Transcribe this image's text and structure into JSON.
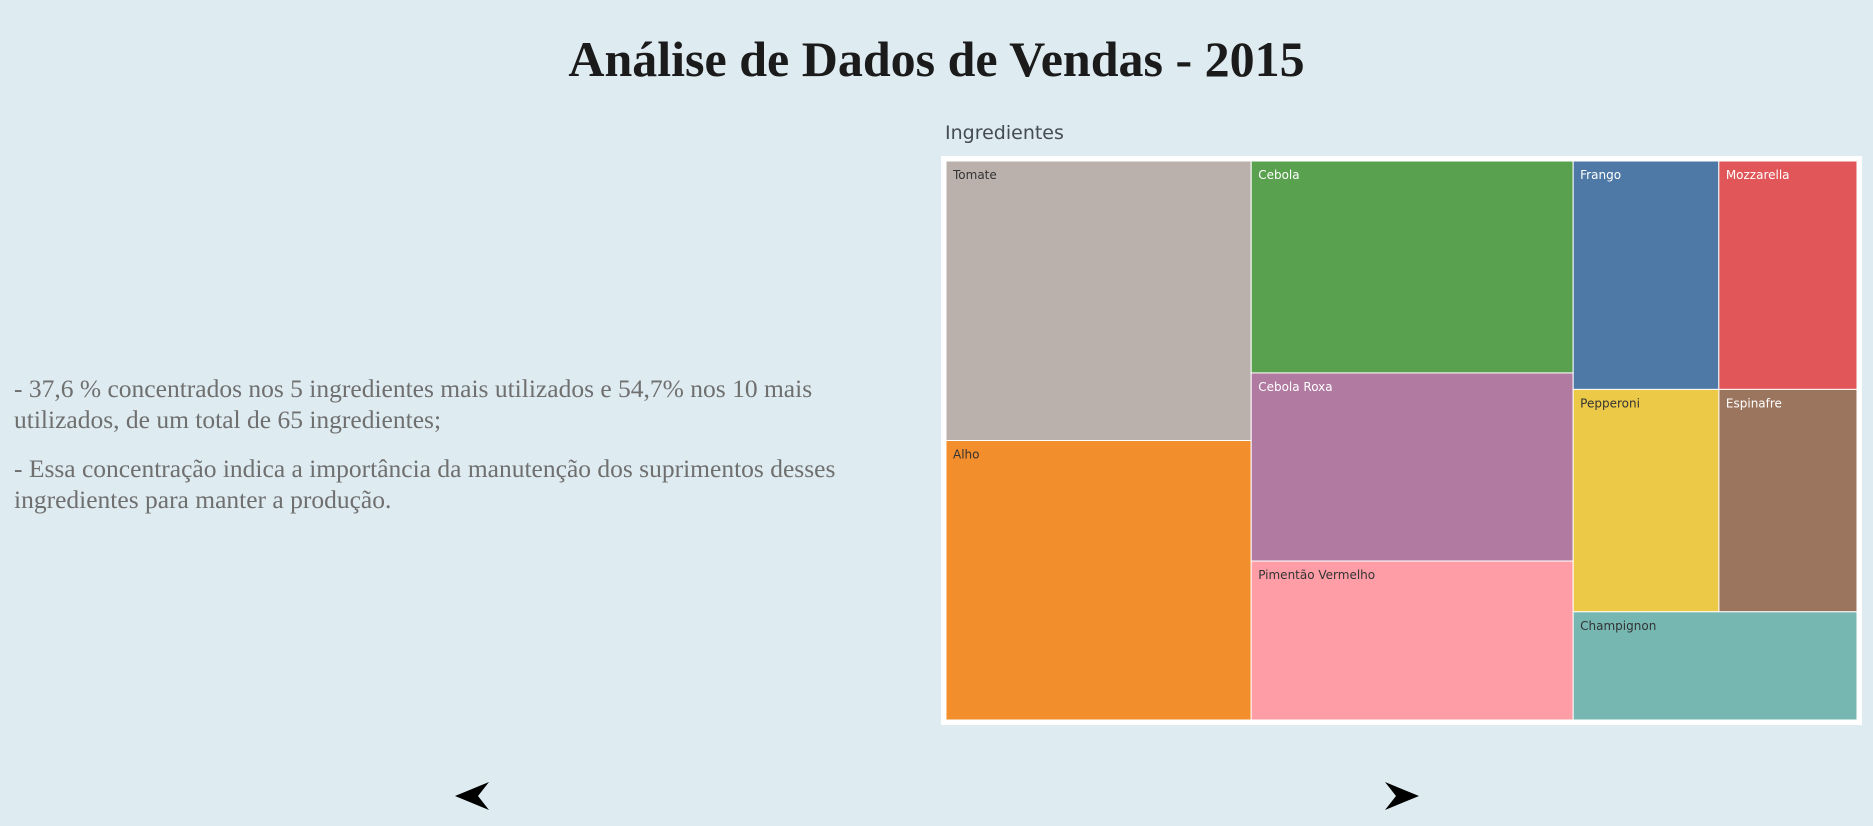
{
  "header": {
    "title": "Análise de Dados de Vendas - 2015"
  },
  "commentary": {
    "paragraphs": [
      "- 37,6 % concentrados nos 5 ingredientes mais utilizados e 54,7% nos 10 mais utilizados, de um total de 65 ingredientes;",
      "- Essa concentração indica a importância da manutenção dos suprimentos desses ingredientes para manter a produção."
    ]
  },
  "navigation": {
    "prev_icon": "triangle-left-icon",
    "next_icon": "triangle-right-icon"
  },
  "chart_data": {
    "type": "treemap",
    "title": "Ingredientes",
    "items": [
      {
        "name": "Tomate",
        "value": 100,
        "color": "#bab0ac"
      },
      {
        "name": "Alho",
        "value": 100,
        "color": "#f28e2b"
      },
      {
        "name": "Cebola",
        "value": 80,
        "color": "#59a14f"
      },
      {
        "name": "Cebola Roxa",
        "value": 71,
        "color": "#b07aa1"
      },
      {
        "name": "Pimentão Vermelho",
        "value": 60,
        "color": "#ff9da7"
      },
      {
        "name": "Frango",
        "value": 39,
        "color": "#4e79a7"
      },
      {
        "name": "Mozzarella",
        "value": 37,
        "color": "#e15759"
      },
      {
        "name": "Pepperoni",
        "value": 38,
        "color": "#edc948"
      },
      {
        "name": "Espinafre",
        "value": 36,
        "color": "#9c755f"
      },
      {
        "name": "Champignon",
        "value": 36,
        "color": "#76b7b2"
      }
    ]
  }
}
